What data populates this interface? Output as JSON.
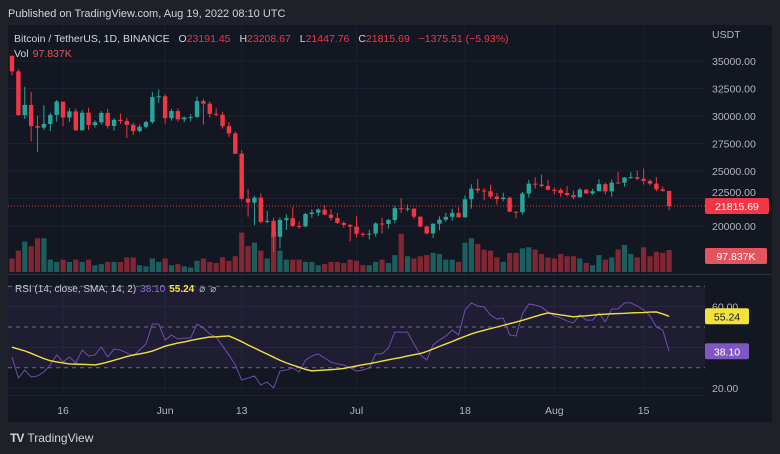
{
  "header": {
    "published": "Published on TradingView.com, Aug 19, 2022 08:10 UTC"
  },
  "legend": {
    "symbol": "Bitcoin / TetherUS, 1D, BINANCE",
    "o_label": "O",
    "o_value": "23191.45",
    "h_label": "H",
    "h_value": "23208.67",
    "l_label": "L",
    "l_value": "21447.76",
    "c_label": "C",
    "c_value": "21815.69",
    "change": "−1375.51 (−5.93%)",
    "vol_label": "Vol",
    "vol_value": "97.837K"
  },
  "rsi_legend": {
    "label": "RSI (14, close, SMA, 14, 2)",
    "rsi_value": "38.10",
    "ma_value": "55.24",
    "na1": "⌀",
    "na2": "⌀"
  },
  "footer": {
    "brand": "TradingView",
    "logo_text": "TV"
  },
  "colors": {
    "up": "#26a69a",
    "down": "#f23645",
    "rsi": "#7e57c2",
    "rsi_ma": "#f2e33b",
    "background": "#131722"
  },
  "chart_data": [
    {
      "type": "candlestick",
      "title": "",
      "currency_label": "USDT",
      "ylim": [
        17000,
        36500
      ],
      "y_ticks": [
        "35000.00",
        "32500.00",
        "30000.00",
        "27500.00",
        "25000.00",
        "22500.00",
        "20000.00"
      ],
      "x_ticks": [
        {
          "label": "16",
          "date": "2022-05-16"
        },
        {
          "label": "Jun",
          "date": "2022-06-01"
        },
        {
          "label": "13",
          "date": "2022-06-13"
        },
        {
          "label": "Jul",
          "date": "2022-07-01"
        },
        {
          "label": "18",
          "date": "2022-07-18"
        },
        {
          "label": "Aug",
          "date": "2022-08-01"
        },
        {
          "label": "15",
          "date": "2022-08-15"
        }
      ],
      "last_price_label": "21815.69",
      "last_volume_label": "97.837K",
      "columns": [
        "date",
        "open",
        "high",
        "low",
        "close",
        "volume_k"
      ],
      "candles": [
        [
          "2022-05-08",
          35470,
          35500,
          33700,
          34060,
          60
        ],
        [
          "2022-05-09",
          34060,
          34240,
          30030,
          30080,
          95
        ],
        [
          "2022-05-10",
          30080,
          32650,
          29730,
          31010,
          135
        ],
        [
          "2022-05-11",
          31010,
          32190,
          27700,
          29080,
          115
        ],
        [
          "2022-05-12",
          29080,
          30030,
          26700,
          28940,
          150
        ],
        [
          "2022-05-13",
          28940,
          30980,
          28730,
          29280,
          150
        ],
        [
          "2022-05-14",
          29280,
          30300,
          28630,
          30100,
          55
        ],
        [
          "2022-05-15",
          30100,
          31460,
          29480,
          31310,
          45
        ],
        [
          "2022-05-16",
          31310,
          31320,
          29090,
          29860,
          55
        ],
        [
          "2022-05-17",
          29860,
          30700,
          29460,
          30420,
          45
        ],
        [
          "2022-05-18",
          30420,
          30660,
          28650,
          28700,
          55
        ],
        [
          "2022-05-19",
          28700,
          30540,
          28680,
          30300,
          45
        ],
        [
          "2022-05-20",
          30300,
          30760,
          28720,
          29180,
          55
        ],
        [
          "2022-05-21",
          29180,
          29600,
          28950,
          29430,
          30
        ],
        [
          "2022-05-22",
          29430,
          30440,
          29240,
          30280,
          35
        ],
        [
          "2022-05-23",
          30280,
          30650,
          28850,
          29090,
          45
        ],
        [
          "2022-05-24",
          29090,
          29820,
          28660,
          29650,
          45
        ],
        [
          "2022-05-25",
          29650,
          30220,
          29300,
          29540,
          45
        ],
        [
          "2022-05-26",
          29540,
          29830,
          28000,
          29200,
          65
        ],
        [
          "2022-05-27",
          29200,
          29370,
          28280,
          28630,
          65
        ],
        [
          "2022-05-28",
          28630,
          29230,
          28520,
          29020,
          30
        ],
        [
          "2022-05-29",
          29020,
          29560,
          28860,
          29450,
          25
        ],
        [
          "2022-05-30",
          29450,
          32200,
          29300,
          31720,
          60
        ],
        [
          "2022-05-31",
          31720,
          32400,
          31200,
          31790,
          45
        ],
        [
          "2022-06-01",
          31790,
          31980,
          29300,
          29800,
          60
        ],
        [
          "2022-06-02",
          29800,
          30650,
          29570,
          30450,
          30
        ],
        [
          "2022-06-03",
          30450,
          30680,
          29500,
          29700,
          35
        ],
        [
          "2022-06-04",
          29700,
          29950,
          29450,
          29860,
          25
        ],
        [
          "2022-06-05",
          29860,
          30170,
          29500,
          29900,
          20
        ],
        [
          "2022-06-06",
          29900,
          31760,
          29880,
          31360,
          50
        ],
        [
          "2022-06-07",
          31360,
          31560,
          29220,
          31120,
          60
        ],
        [
          "2022-06-08",
          31120,
          31330,
          29850,
          30200,
          45
        ],
        [
          "2022-06-09",
          30200,
          30700,
          29950,
          30110,
          40
        ],
        [
          "2022-06-10",
          30110,
          30380,
          28850,
          29080,
          65
        ],
        [
          "2022-06-11",
          29080,
          29450,
          28100,
          28420,
          50
        ],
        [
          "2022-06-12",
          28420,
          28580,
          26560,
          26570,
          70
        ],
        [
          "2022-06-13",
          26570,
          26890,
          22320,
          22480,
          175
        ],
        [
          "2022-06-14",
          22480,
          23360,
          20850,
          22130,
          115
        ],
        [
          "2022-06-15",
          22130,
          22760,
          20070,
          22580,
          130
        ],
        [
          "2022-06-16",
          22580,
          22970,
          20230,
          20380,
          95
        ],
        [
          "2022-06-17",
          20380,
          21370,
          20240,
          20470,
          60
        ],
        [
          "2022-06-18",
          20470,
          20750,
          17620,
          19020,
          175
        ],
        [
          "2022-06-19",
          19020,
          20800,
          17950,
          20550,
          95
        ],
        [
          "2022-06-20",
          20550,
          21060,
          19640,
          20710,
          55
        ],
        [
          "2022-06-21",
          20710,
          21720,
          19900,
          20000,
          55
        ],
        [
          "2022-06-22",
          20000,
          20400,
          19770,
          19960,
          55
        ],
        [
          "2022-06-23",
          19960,
          21200,
          19890,
          21090,
          45
        ],
        [
          "2022-06-24",
          21090,
          21530,
          20720,
          21230,
          45
        ],
        [
          "2022-06-25",
          21230,
          21600,
          20900,
          21490,
          30
        ],
        [
          "2022-06-26",
          21490,
          21860,
          21000,
          21030,
          35
        ],
        [
          "2022-06-27",
          21030,
          21520,
          20500,
          20730,
          45
        ],
        [
          "2022-06-28",
          20730,
          21190,
          20200,
          20280,
          45
        ],
        [
          "2022-06-29",
          20280,
          20430,
          19850,
          20100,
          40
        ],
        [
          "2022-06-30",
          20100,
          20170,
          18620,
          19940,
          55
        ],
        [
          "2022-07-01",
          19940,
          20880,
          18960,
          19290,
          50
        ],
        [
          "2022-07-02",
          19290,
          19430,
          19000,
          19250,
          30
        ],
        [
          "2022-07-03",
          19250,
          19650,
          18780,
          19310,
          30
        ],
        [
          "2022-07-04",
          19310,
          20350,
          19040,
          20230,
          45
        ],
        [
          "2022-07-05",
          20230,
          20730,
          19300,
          20190,
          55
        ],
        [
          "2022-07-06",
          20190,
          20660,
          19760,
          20550,
          40
        ],
        [
          "2022-07-07",
          20550,
          21840,
          20240,
          21620,
          75
        ],
        [
          "2022-07-08",
          21620,
          22530,
          21180,
          21590,
          170
        ],
        [
          "2022-07-09",
          21590,
          21950,
          21330,
          21590,
          70
        ],
        [
          "2022-07-10",
          21590,
          21600,
          20650,
          20850,
          60
        ],
        [
          "2022-07-11",
          20850,
          20870,
          19880,
          19950,
          70
        ],
        [
          "2022-07-12",
          19950,
          20050,
          19240,
          19330,
          75
        ],
        [
          "2022-07-13",
          19330,
          20260,
          18910,
          20210,
          85
        ],
        [
          "2022-07-14",
          20210,
          20880,
          19620,
          20580,
          80
        ],
        [
          "2022-07-15",
          20580,
          21200,
          20390,
          20830,
          55
        ],
        [
          "2022-07-16",
          20830,
          21560,
          20480,
          21190,
          55
        ],
        [
          "2022-07-17",
          21190,
          21690,
          20760,
          20790,
          45
        ],
        [
          "2022-07-18",
          20790,
          22790,
          20760,
          22430,
          130
        ],
        [
          "2022-07-19",
          22430,
          23800,
          21580,
          23400,
          150
        ],
        [
          "2022-07-20",
          23400,
          24280,
          23000,
          23230,
          125
        ],
        [
          "2022-07-21",
          23230,
          23440,
          22340,
          23160,
          100
        ],
        [
          "2022-07-22",
          23160,
          23760,
          22500,
          22680,
          95
        ],
        [
          "2022-07-23",
          22680,
          22990,
          21950,
          22450,
          65
        ],
        [
          "2022-07-24",
          22450,
          23020,
          22260,
          22580,
          45
        ],
        [
          "2022-07-25",
          22580,
          22660,
          21250,
          21300,
          85
        ],
        [
          "2022-07-26",
          21300,
          21350,
          20700,
          21250,
          85
        ],
        [
          "2022-07-27",
          21250,
          23110,
          21040,
          22950,
          105
        ],
        [
          "2022-07-28",
          22950,
          24200,
          22590,
          23850,
          110
        ],
        [
          "2022-07-29",
          23850,
          24440,
          23400,
          23770,
          100
        ],
        [
          "2022-07-30",
          23770,
          24670,
          23500,
          23640,
          80
        ],
        [
          "2022-07-31",
          23640,
          24190,
          23230,
          23290,
          65
        ],
        [
          "2022-08-01",
          23290,
          23500,
          22850,
          23270,
          60
        ],
        [
          "2022-08-02",
          23270,
          23460,
          22660,
          22990,
          80
        ],
        [
          "2022-08-03",
          22990,
          23650,
          22690,
          22820,
          70
        ],
        [
          "2022-08-04",
          22820,
          23230,
          22430,
          22610,
          70
        ],
        [
          "2022-08-05",
          22610,
          23470,
          22590,
          23310,
          60
        ],
        [
          "2022-08-06",
          23310,
          23350,
          22940,
          22960,
          40
        ],
        [
          "2022-08-07",
          22960,
          23380,
          22850,
          23170,
          30
        ],
        [
          "2022-08-08",
          23170,
          24250,
          23150,
          23810,
          75
        ],
        [
          "2022-08-09",
          23810,
          23950,
          22880,
          23150,
          55
        ],
        [
          "2022-08-10",
          23150,
          24230,
          22650,
          23950,
          65
        ],
        [
          "2022-08-11",
          23950,
          24920,
          23900,
          23940,
          100
        ],
        [
          "2022-08-12",
          23940,
          24450,
          23600,
          24400,
          120
        ],
        [
          "2022-08-13",
          24400,
          24890,
          24300,
          24440,
          80
        ],
        [
          "2022-08-14",
          24440,
          25050,
          24160,
          24300,
          65
        ],
        [
          "2022-08-15",
          24300,
          25210,
          23770,
          24100,
          110
        ],
        [
          "2022-08-16",
          24100,
          24240,
          23700,
          23850,
          70
        ],
        [
          "2022-08-17",
          23850,
          24450,
          23180,
          23340,
          90
        ],
        [
          "2022-08-18",
          23340,
          23600,
          23110,
          23190,
          85
        ],
        [
          "2022-08-19",
          23191.45,
          23208.67,
          21447.76,
          21815.69,
          97.837
        ]
      ]
    },
    {
      "type": "line",
      "title": "",
      "ylim": [
        15,
        75
      ],
      "bands": [
        70,
        50,
        30
      ],
      "y_ticks": [
        "60.00",
        "20.00"
      ],
      "rsi_value_label": "38.10",
      "ma_value_label": "55.24",
      "series": [
        {
          "key": "rsi",
          "values": [
            35.3,
            25,
            28.9,
            25.5,
            26,
            28,
            31.4,
            36.3,
            32.8,
            35.3,
            32.4,
            38.7,
            35.8,
            36.3,
            40.2,
            35.3,
            39.2,
            38.7,
            37.3,
            35.8,
            38.7,
            41.7,
            51.5,
            51.5,
            43.6,
            46.1,
            44.1,
            44.6,
            44.6,
            51.5,
            49.5,
            46.6,
            45.1,
            40.7,
            36.3,
            31.4,
            24,
            25,
            26,
            21.6,
            23,
            20.1,
            28.4,
            28.9,
            29.9,
            27.9,
            33.8,
            35.8,
            36.8,
            34.8,
            32.8,
            31.9,
            31.4,
            29.9,
            28.4,
            28.9,
            29.9,
            36.8,
            36.8,
            39.7,
            47.5,
            47.5,
            47.5,
            41.7,
            36.3,
            33.8,
            41.2,
            43.6,
            45.6,
            48.5,
            46.1,
            58.3,
            61.8,
            60.3,
            59.8,
            55.9,
            53.9,
            54.4,
            46.1,
            45.6,
            56.4,
            61.3,
            60.8,
            59.8,
            57.4,
            55.4,
            54.4,
            52.9,
            52,
            55.9,
            53.4,
            53.4,
            56.9,
            52.5,
            58.8,
            58.8,
            61.8,
            61.8,
            60.3,
            58.3,
            55.4,
            50,
            48.5,
            38.1
          ]
        },
        {
          "key": "rsi_ma",
          "values": [
            40.1,
            39.2,
            38.3,
            37.1,
            35.8,
            34.5,
            33.5,
            32.9,
            32.4,
            31.9,
            31.8,
            31.7,
            31.6,
            31.4,
            32,
            32.8,
            33.7,
            34.6,
            35.5,
            36.3,
            36.8,
            37.4,
            38.2,
            39.4,
            40.6,
            41.4,
            42.1,
            42.7,
            43.4,
            44,
            44.6,
            45.1,
            45.2,
            45.4,
            45.6,
            44.3,
            42.8,
            41.2,
            39.7,
            38.2,
            36.7,
            35.2,
            33.7,
            32.4,
            31.3,
            30.3,
            29.2,
            28.5,
            28.7,
            28.9,
            29.1,
            29.3,
            29.7,
            30.3,
            30.9,
            31.5,
            32,
            32.6,
            33.3,
            33.9,
            34.5,
            35.1,
            35.8,
            36.4,
            37,
            38,
            39.2,
            40.5,
            41.7,
            42.9,
            44.2,
            45.4,
            46.6,
            47.6,
            48.4,
            49.2,
            50,
            50.8,
            51.6,
            52.4,
            53.3,
            54.2,
            55.2,
            56.1,
            56.9,
            56.4,
            55.9,
            55.5,
            55,
            55.3,
            55.5,
            55.8,
            56.1,
            56.3,
            56.5,
            56.6,
            56.7,
            56.9,
            57,
            57.1,
            57.3,
            57.4,
            56.4,
            55.24
          ]
        }
      ]
    }
  ]
}
